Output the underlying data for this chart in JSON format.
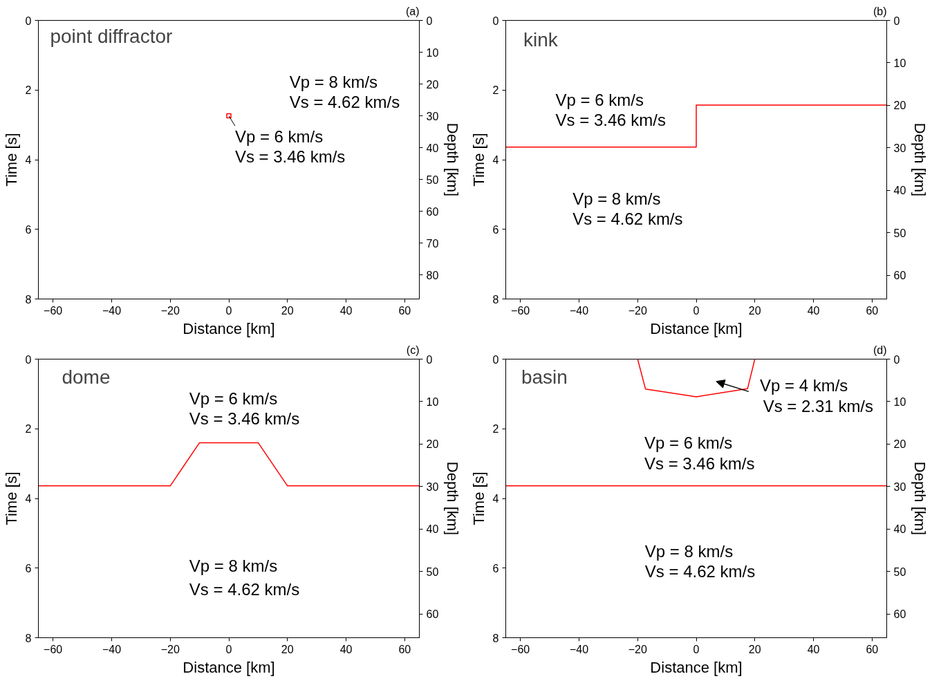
{
  "chart_data": [
    {
      "type": "scatter",
      "title": "point diffractor",
      "xlabel": "Distance [km]",
      "ylabel": "Time [s]",
      "y2label": "Depth [km]",
      "marker": "square",
      "grid": false,
      "x": [
        0
      ],
      "series": [
        {
          "color": "#ff0000",
          "values": [
            2.74
          ]
        }
      ],
      "xlim": [
        -65,
        65
      ],
      "xticks": [
        -60,
        -40,
        -20,
        0,
        20,
        40,
        60
      ],
      "ylim": [
        8,
        0
      ],
      "yticks": [
        0,
        2,
        4,
        6,
        8
      ],
      "y2lim": [
        87.5,
        0
      ],
      "y2ticks": [
        0,
        10,
        20,
        30,
        40,
        50,
        60,
        70,
        80
      ],
      "annotations": [
        "(a)",
        "Vp = 8 km/s",
        "Vs = 4.62 km/s",
        {
          "text": "Vp = 6 km/s",
          "x": 0,
          "y": 2.74
        },
        "Vs = 3.46 km/s"
      ]
    },
    {
      "type": "line",
      "title": "kink",
      "xlabel": "Distance [km]",
      "ylabel": "Time [s]",
      "y2label": "Depth [km]",
      "grid": false,
      "x": [
        -65,
        0,
        0,
        65
      ],
      "series": [
        {
          "color": "#ff0000",
          "values": [
            3.64,
            3.64,
            2.43,
            2.43
          ]
        }
      ],
      "xlim": [
        -65,
        65
      ],
      "xticks": [
        -60,
        -40,
        -20,
        0,
        20,
        40,
        60
      ],
      "ylim": [
        8,
        0
      ],
      "yticks": [
        0,
        2,
        4,
        6,
        8
      ],
      "y2lim": [
        65.6,
        0
      ],
      "y2ticks": [
        0,
        10,
        20,
        30,
        40,
        50,
        60
      ],
      "annotations": [
        "(b)",
        "Vp = 6 km/s",
        "Vs = 3.46 km/s",
        "Vp = 8 km/s",
        "Vs = 4.62 km/s"
      ]
    },
    {
      "type": "line",
      "title": "dome",
      "xlabel": "Distance [km]",
      "ylabel": "Time [s]",
      "y2label": "Depth [km]",
      "grid": false,
      "x": [
        -65,
        -20,
        -10,
        10,
        20,
        65
      ],
      "series": [
        {
          "color": "#ff0000",
          "values": [
            3.64,
            3.64,
            2.4,
            2.4,
            3.64,
            3.64
          ]
        }
      ],
      "xlim": [
        -65,
        65
      ],
      "xticks": [
        -60,
        -40,
        -20,
        0,
        20,
        40,
        60
      ],
      "ylim": [
        8,
        0
      ],
      "yticks": [
        0,
        2,
        4,
        6,
        8
      ],
      "y2lim": [
        65.6,
        0
      ],
      "y2ticks": [
        0,
        10,
        20,
        30,
        40,
        50,
        60
      ],
      "annotations": [
        "(c)",
        "Vp = 6 km/s",
        "Vs = 3.46 km/s",
        "Vp = 8 km/s",
        "Vs = 4.62 km/s"
      ]
    },
    {
      "type": "line",
      "title": "basin",
      "xlabel": "Distance [km]",
      "ylabel": "Time [s]",
      "y2label": "Depth [km]",
      "grid": false,
      "series": [
        {
          "color": "#ff0000",
          "x": [
            -65,
            65
          ],
          "values": [
            3.64,
            3.64
          ]
        },
        {
          "color": "#ff0000",
          "x": [
            -20,
            -17.3,
            0,
            17.5,
            20
          ],
          "values": [
            0,
            0.86,
            1.08,
            0.85,
            0
          ]
        }
      ],
      "xlim": [
        -65,
        65
      ],
      "xticks": [
        -60,
        -40,
        -20,
        0,
        20,
        40,
        60
      ],
      "ylim": [
        8,
        0
      ],
      "yticks": [
        0,
        2,
        4,
        6,
        8
      ],
      "y2lim": [
        65.6,
        0
      ],
      "y2ticks": [
        0,
        10,
        20,
        30,
        40,
        50,
        60
      ],
      "annotations": [
        "(d)",
        "Vp = 4 km/s",
        "Vs = 2.31 km/s",
        "Vp = 6 km/s",
        "Vs = 3.46 km/s",
        "Vp = 8 km/s",
        "Vs = 4.62 km/s"
      ]
    }
  ]
}
